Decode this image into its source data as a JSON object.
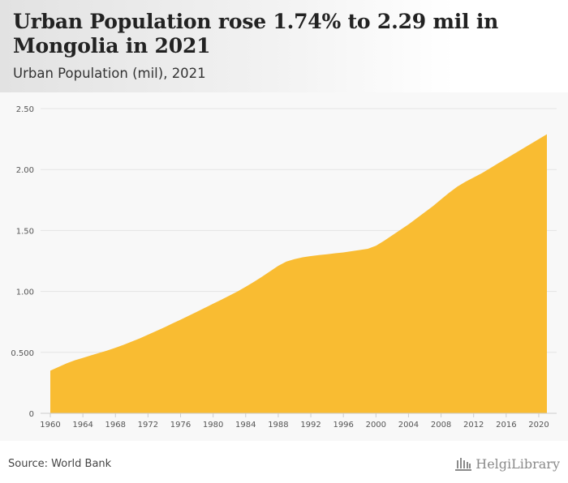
{
  "header": {
    "title": "Urban Population rose 1.74% to 2.29 mil in Mongolia in 2021",
    "subtitle": "Urban Population (mil), 2021"
  },
  "footer": {
    "source": "Source: World Bank",
    "logo_text": "HelgiLibrary"
  },
  "colors": {
    "area_fill": "#f9bc32",
    "grid": "#e4e4e4",
    "axis_text": "#555555"
  },
  "chart_data": {
    "type": "area",
    "title": "Urban Population rose 1.74% to 2.29 mil in Mongolia in 2021",
    "subtitle": "Urban Population (mil), 2021",
    "xlabel": "",
    "ylabel": "",
    "xlim": [
      1960,
      2021
    ],
    "ylim": [
      0,
      2.5
    ],
    "grid": true,
    "x_ticks": [
      "1960",
      "1964",
      "1968",
      "1972",
      "1976",
      "1980",
      "1984",
      "1988",
      "1992",
      "1996",
      "2000",
      "2004",
      "2008",
      "2012",
      "2016",
      "2020"
    ],
    "y_ticks": [
      {
        "value": 0,
        "label": "0"
      },
      {
        "value": 0.5,
        "label": "0.500"
      },
      {
        "value": 1.0,
        "label": "1.00"
      },
      {
        "value": 1.5,
        "label": "1.50"
      },
      {
        "value": 2.0,
        "label": "2.00"
      },
      {
        "value": 2.5,
        "label": "2.50"
      }
    ],
    "series": [
      {
        "name": "Urban Population (mil)",
        "x": [
          1960,
          1961,
          1962,
          1963,
          1964,
          1965,
          1966,
          1967,
          1968,
          1969,
          1970,
          1971,
          1972,
          1973,
          1974,
          1975,
          1976,
          1977,
          1978,
          1979,
          1980,
          1981,
          1982,
          1983,
          1984,
          1985,
          1986,
          1987,
          1988,
          1989,
          1990,
          1991,
          1992,
          1993,
          1994,
          1995,
          1996,
          1997,
          1998,
          1999,
          2000,
          2001,
          2002,
          2003,
          2004,
          2005,
          2006,
          2007,
          2008,
          2009,
          2010,
          2011,
          2012,
          2013,
          2014,
          2015,
          2016,
          2017,
          2018,
          2019,
          2020,
          2021
        ],
        "values": [
          0.35,
          0.38,
          0.41,
          0.435,
          0.455,
          0.475,
          0.495,
          0.515,
          0.538,
          0.562,
          0.588,
          0.615,
          0.645,
          0.675,
          0.705,
          0.737,
          0.768,
          0.8,
          0.833,
          0.866,
          0.899,
          0.932,
          0.966,
          1.0,
          1.038,
          1.078,
          1.12,
          1.165,
          1.21,
          1.245,
          1.265,
          1.28,
          1.29,
          1.298,
          1.305,
          1.313,
          1.32,
          1.33,
          1.34,
          1.35,
          1.375,
          1.415,
          1.46,
          1.505,
          1.55,
          1.6,
          1.65,
          1.7,
          1.755,
          1.81,
          1.86,
          1.9,
          1.935,
          1.97,
          2.01,
          2.05,
          2.09,
          2.13,
          2.17,
          2.21,
          2.25,
          2.29
        ]
      }
    ]
  }
}
